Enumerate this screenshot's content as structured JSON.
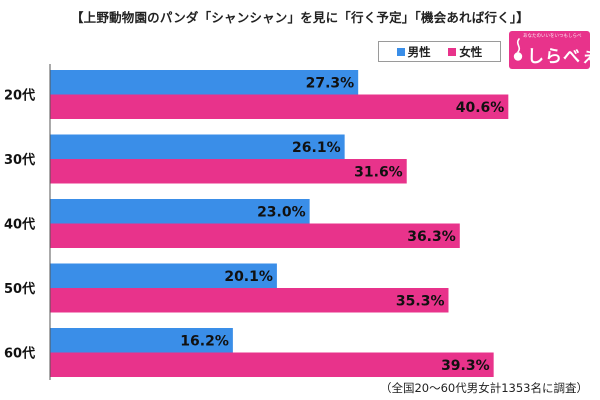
{
  "title": "【上野動物園のパンダ「シャンシャン」を見に「行く予定」「機会あれば行く」】",
  "footnote": "（全国20～60代男女計1353名に調査）",
  "logo": {
    "tagline": "あなたのいいをいつもしらべ",
    "name": "しらべぇ",
    "mark_icon": "logo-mark-icon"
  },
  "colors": {
    "male": "#3a8ee8",
    "female": "#e8338b",
    "axis": "#555555"
  },
  "chart_data": {
    "type": "bar",
    "orientation": "horizontal",
    "categories": [
      "20代",
      "30代",
      "40代",
      "50代",
      "60代"
    ],
    "series": [
      {
        "name": "男性",
        "values": [
          27.3,
          26.1,
          23.0,
          20.1,
          16.2
        ]
      },
      {
        "name": "女性",
        "values": [
          40.6,
          31.6,
          36.3,
          35.3,
          39.3
        ]
      }
    ],
    "value_suffix": "%",
    "xlim": [
      0,
      45
    ],
    "grid": false,
    "legend": "top-right",
    "title": "",
    "xlabel": "",
    "ylabel": ""
  }
}
